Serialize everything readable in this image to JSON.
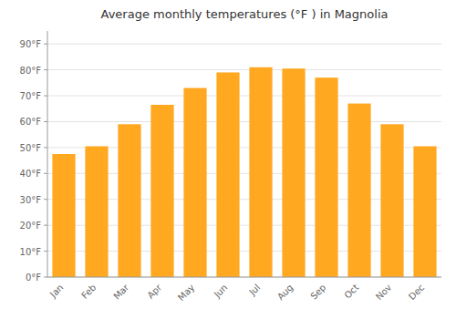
{
  "chart_data": {
    "type": "bar",
    "title": "Average monthly temperatures (°F ) in Magnolia",
    "categories": [
      "Jan",
      "Feb",
      "Mar",
      "Apr",
      "May",
      "Jun",
      "Jul",
      "Aug",
      "Sep",
      "Oct",
      "Nov",
      "Dec"
    ],
    "values": [
      47.5,
      50.5,
      59.0,
      66.5,
      73.0,
      79.0,
      81.0,
      80.5,
      77.0,
      67.0,
      59.0,
      50.5
    ],
    "color": "#FFA820",
    "ylim": [
      0,
      95
    ],
    "yticks": [
      {
        "value": 0,
        "label": "0°F"
      },
      {
        "value": 10,
        "label": "10°F"
      },
      {
        "value": 20,
        "label": "20°F"
      },
      {
        "value": 30,
        "label": "30°F"
      },
      {
        "value": 40,
        "label": "40°F"
      },
      {
        "value": 50,
        "label": "50°F"
      },
      {
        "value": 60,
        "label": "60°F"
      },
      {
        "value": 70,
        "label": "70°F"
      },
      {
        "value": 80,
        "label": "80°F"
      },
      {
        "value": 90,
        "label": "90°F"
      }
    ],
    "grid": true
  }
}
